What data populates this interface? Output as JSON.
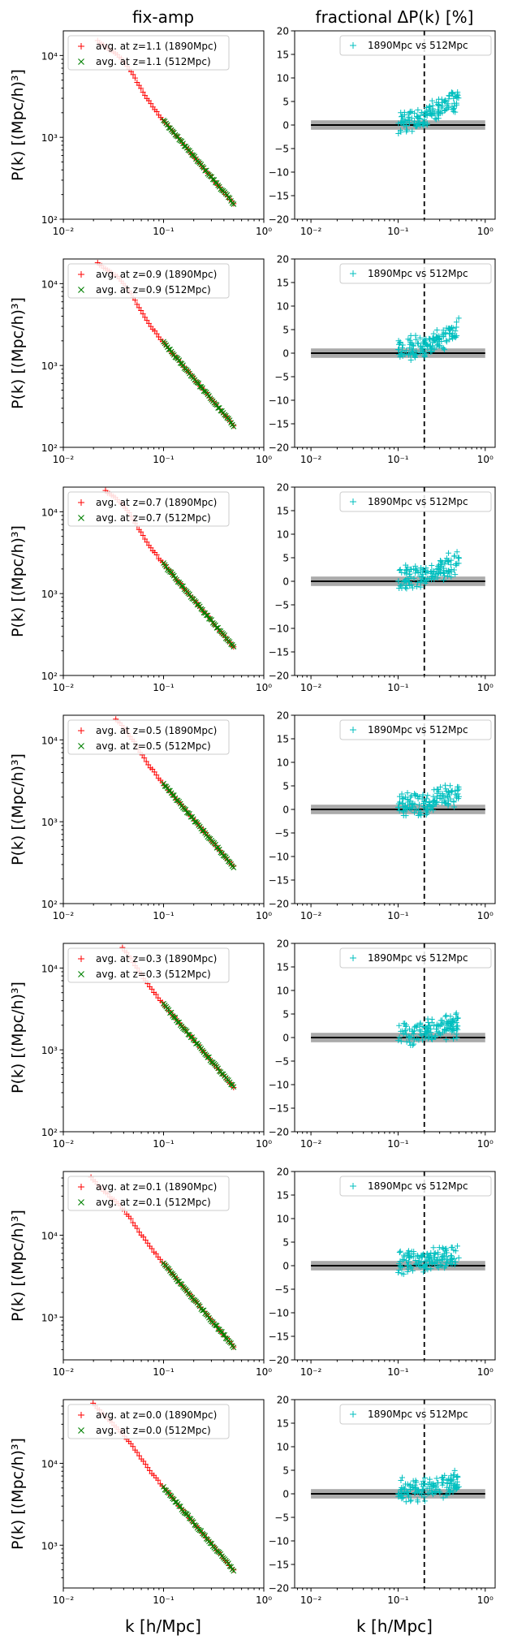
{
  "figure": {
    "col_titles": [
      "fix-amp",
      "fractional ΔP(k) [%]"
    ],
    "xlabel": "k [h/Mpc]",
    "ylabel_left": "P(k) [(Mpc/h)³]",
    "x_ticks": [
      "10⁻²",
      "10⁻¹",
      "10⁰"
    ],
    "right_y_ticks": [
      "20",
      "15",
      "10",
      "5",
      "0",
      "−5",
      "−10",
      "−15",
      "−20"
    ],
    "legend_right": "1890Mpc vs 512Mpc",
    "colors": {
      "red": "#ff0000",
      "green": "#008000",
      "cyan": "#00bfbf",
      "band": "#aaaaaa"
    }
  },
  "chart_data": [
    {
      "type": "scatter",
      "z": "1.1",
      "legend": [
        "avg. at z=1.1 (1890Mpc)",
        "avg. at z=1.1 (512Mpc)"
      ],
      "xlim": [
        0.01,
        1
      ],
      "ylim": [
        100,
        20000
      ],
      "y_ticks": [
        "10²",
        "10³",
        "10⁴"
      ],
      "y_tick_values": [
        100,
        1000,
        10000
      ],
      "amplitude_at_k01": 1600,
      "plateau_kink": 0.4,
      "k1890_range": [
        0.022,
        0.5
      ],
      "k512_range": [
        0.1,
        0.5
      ],
      "diff_ylim": [
        -20,
        20
      ],
      "diff_band": [
        -1,
        1
      ],
      "k_ref_line": 0.2,
      "diff_trend": [
        {
          "k": 0.1,
          "value": 0.8
        },
        {
          "k": 0.2,
          "value": 1.5
        },
        {
          "k": 0.3,
          "value": 3.5
        },
        {
          "k": 0.5,
          "value": 6
        }
      ]
    },
    {
      "type": "scatter",
      "z": "0.9",
      "legend": [
        "avg. at z=0.9 (1890Mpc)",
        "avg. at z=0.9 (512Mpc)"
      ],
      "xlim": [
        0.01,
        1
      ],
      "ylim": [
        100,
        20000
      ],
      "y_ticks": [
        "10²",
        "10³",
        "10⁴"
      ],
      "y_tick_values": [
        100,
        1000,
        10000
      ],
      "amplitude_at_k01": 1900,
      "plateau_kink": 0.4,
      "k1890_range": [
        0.022,
        0.5
      ],
      "k512_range": [
        0.1,
        0.5
      ],
      "diff_ylim": [
        -20,
        20
      ],
      "diff_band": [
        -1,
        1
      ],
      "k_ref_line": 0.2,
      "diff_trend": [
        {
          "k": 0.1,
          "value": 0.8
        },
        {
          "k": 0.2,
          "value": 1.3
        },
        {
          "k": 0.3,
          "value": 3
        },
        {
          "k": 0.5,
          "value": 5
        }
      ]
    },
    {
      "type": "scatter",
      "z": "0.7",
      "legend": [
        "avg. at z=0.7 (1890Mpc)",
        "avg. at z=0.7 (512Mpc)"
      ],
      "xlim": [
        0.01,
        1
      ],
      "ylim": [
        100,
        20000
      ],
      "y_ticks": [
        "10²",
        "10³",
        "10⁴"
      ],
      "y_tick_values": [
        100,
        1000,
        10000
      ],
      "amplitude_at_k01": 2300,
      "plateau_kink": 0.35,
      "k1890_range": [
        0.022,
        0.5
      ],
      "k512_range": [
        0.1,
        0.5
      ],
      "diff_ylim": [
        -20,
        20
      ],
      "diff_band": [
        -1,
        1
      ],
      "k_ref_line": 0.2,
      "diff_trend": [
        {
          "k": 0.1,
          "value": 0.8
        },
        {
          "k": 0.2,
          "value": 1.2
        },
        {
          "k": 0.3,
          "value": 2.5
        },
        {
          "k": 0.5,
          "value": 4
        }
      ]
    },
    {
      "type": "scatter",
      "z": "0.5",
      "legend": [
        "avg. at z=0.5 (1890Mpc)",
        "avg. at z=0.5 (512Mpc)"
      ],
      "xlim": [
        0.01,
        1
      ],
      "ylim": [
        100,
        20000
      ],
      "y_ticks": [
        "10²",
        "10³",
        "10⁴"
      ],
      "y_tick_values": [
        100,
        1000,
        10000
      ],
      "amplitude_at_k01": 2900,
      "plateau_kink": 0.3,
      "k1890_range": [
        0.02,
        0.5
      ],
      "k512_range": [
        0.1,
        0.5
      ],
      "diff_ylim": [
        -20,
        20
      ],
      "diff_band": [
        -1,
        1
      ],
      "k_ref_line": 0.2,
      "diff_trend": [
        {
          "k": 0.1,
          "value": 0.8
        },
        {
          "k": 0.2,
          "value": 1.1
        },
        {
          "k": 0.3,
          "value": 2.2
        },
        {
          "k": 0.5,
          "value": 3.5
        }
      ]
    },
    {
      "type": "scatter",
      "z": "0.3",
      "legend": [
        "avg. at z=0.3 (1890Mpc)",
        "avg. at z=0.3 (512Mpc)"
      ],
      "xlim": [
        0.01,
        1
      ],
      "ylim": [
        100,
        20000
      ],
      "y_ticks": [
        "10²",
        "10³",
        "10⁴"
      ],
      "y_tick_values": [
        100,
        1000,
        10000
      ],
      "amplitude_at_k01": 3600,
      "plateau_kink": 0.25,
      "k1890_range": [
        0.018,
        0.5
      ],
      "k512_range": [
        0.1,
        0.5
      ],
      "diff_ylim": [
        -20,
        20
      ],
      "diff_band": [
        -1,
        1
      ],
      "k_ref_line": 0.2,
      "diff_trend": [
        {
          "k": 0.1,
          "value": 0.8
        },
        {
          "k": 0.2,
          "value": 1
        },
        {
          "k": 0.3,
          "value": 1.8
        },
        {
          "k": 0.5,
          "value": 3
        }
      ]
    },
    {
      "type": "scatter",
      "z": "0.1",
      "legend": [
        "avg. at z=0.1 (1890Mpc)",
        "avg. at z=0.1 (512Mpc)"
      ],
      "xlim": [
        0.01,
        1
      ],
      "ylim": [
        300,
        60000
      ],
      "y_ticks": [
        "10³",
        "10⁴"
      ],
      "y_tick_values": [
        1000,
        10000
      ],
      "amplitude_at_k01": 4500,
      "plateau_kink": 0.2,
      "k1890_range": [
        0.018,
        0.5
      ],
      "k512_range": [
        0.1,
        0.5
      ],
      "diff_ylim": [
        -20,
        20
      ],
      "diff_band": [
        -1,
        1
      ],
      "k_ref_line": 0.2,
      "diff_trend": [
        {
          "k": 0.1,
          "value": 0.8
        },
        {
          "k": 0.2,
          "value": 0.9
        },
        {
          "k": 0.3,
          "value": 1.5
        },
        {
          "k": 0.5,
          "value": 2.5
        }
      ]
    },
    {
      "type": "scatter",
      "z": "0.0",
      "legend": [
        "avg. at z=0.0 (1890Mpc)",
        "avg. at z=0.0 (512Mpc)"
      ],
      "xlim": [
        0.01,
        1
      ],
      "ylim": [
        300,
        60000
      ],
      "y_ticks": [
        "10³",
        "10⁴"
      ],
      "y_tick_values": [
        1000,
        10000
      ],
      "amplitude_at_k01": 5100,
      "plateau_kink": 0.15,
      "k1890_range": [
        0.018,
        0.5
      ],
      "k512_range": [
        0.1,
        0.5
      ],
      "diff_ylim": [
        -20,
        20
      ],
      "diff_band": [
        -1,
        1
      ],
      "k_ref_line": 0.2,
      "diff_trend": [
        {
          "k": 0.1,
          "value": 0.8
        },
        {
          "k": 0.2,
          "value": 0.9
        },
        {
          "k": 0.3,
          "value": 1.5
        },
        {
          "k": 0.5,
          "value": 2.5
        }
      ]
    }
  ]
}
